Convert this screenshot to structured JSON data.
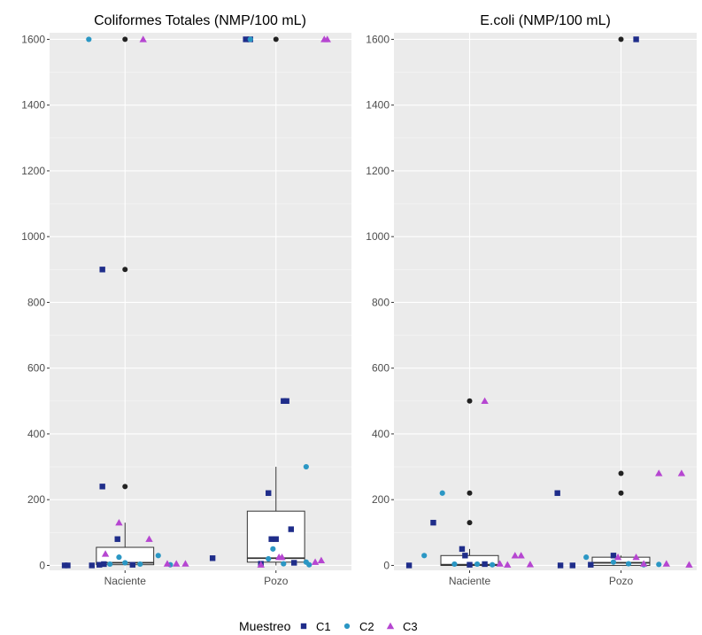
{
  "chart_data": [
    {
      "type": "boxplot",
      "title": "Coliformes Totales (NMP/100 mL)",
      "xlabel": "",
      "ylabel": "",
      "ylim": [
        -15,
        1620
      ],
      "yticks": [
        "0",
        "200",
        "400",
        "600",
        "800",
        "1000",
        "1200",
        "1400",
        "1600"
      ],
      "categories": [
        "Naciente",
        "Pozo"
      ],
      "boxes": [
        {
          "category": "Naciente",
          "q1": 2,
          "median": 8,
          "q3": 55,
          "whisker_low": 0,
          "whisker_high": 130
        },
        {
          "category": "Pozo",
          "q1": 10,
          "median": 22,
          "q3": 165,
          "whisker_low": 0,
          "whisker_high": 300
        }
      ],
      "outliers": [
        {
          "category": "Naciente",
          "values": [
            1600,
            900,
            240
          ]
        },
        {
          "category": "Pozo",
          "values": [
            1600
          ]
        }
      ],
      "series": [
        {
          "name": "C1",
          "color": "#1f2d8a",
          "shape": "square",
          "points": [
            {
              "x": "Naciente",
              "jitter": -0.4,
              "y": 0
            },
            {
              "x": "Naciente",
              "jitter": -0.38,
              "y": 0
            },
            {
              "x": "Naciente",
              "jitter": -0.22,
              "y": 0
            },
            {
              "x": "Naciente",
              "jitter": -0.17,
              "y": 2
            },
            {
              "x": "Naciente",
              "jitter": -0.15,
              "y": 900
            },
            {
              "x": "Naciente",
              "jitter": -0.14,
              "y": 4
            },
            {
              "x": "Naciente",
              "jitter": -0.15,
              "y": 240
            },
            {
              "x": "Naciente",
              "jitter": -0.05,
              "y": 80
            },
            {
              "x": "Naciente",
              "jitter": 0.05,
              "y": 2
            },
            {
              "x": "Pozo",
              "jitter": -0.42,
              "y": 22
            },
            {
              "x": "Pozo",
              "jitter": -0.2,
              "y": 1600
            },
            {
              "x": "Pozo",
              "jitter": -0.17,
              "y": 1600
            },
            {
              "x": "Pozo",
              "jitter": -0.05,
              "y": 220
            },
            {
              "x": "Pozo",
              "jitter": -0.03,
              "y": 80
            },
            {
              "x": "Pozo",
              "jitter": 0.0,
              "y": 80
            },
            {
              "x": "Pozo",
              "jitter": 0.05,
              "y": 500
            },
            {
              "x": "Pozo",
              "jitter": 0.07,
              "y": 500
            },
            {
              "x": "Pozo",
              "jitter": 0.1,
              "y": 110
            },
            {
              "x": "Pozo",
              "jitter": -0.1,
              "y": 5
            },
            {
              "x": "Pozo",
              "jitter": 0.12,
              "y": 8
            }
          ]
        },
        {
          "name": "C2",
          "color": "#2b97c4",
          "shape": "circle",
          "points": [
            {
              "x": "Naciente",
              "jitter": -0.24,
              "y": 1600
            },
            {
              "x": "Naciente",
              "jitter": -0.1,
              "y": 4
            },
            {
              "x": "Naciente",
              "jitter": -0.04,
              "y": 25
            },
            {
              "x": "Naciente",
              "jitter": 0.0,
              "y": 8
            },
            {
              "x": "Naciente",
              "jitter": 0.1,
              "y": 4
            },
            {
              "x": "Naciente",
              "jitter": 0.22,
              "y": 30
            },
            {
              "x": "Naciente",
              "jitter": 0.3,
              "y": 2
            },
            {
              "x": "Pozo",
              "jitter": -0.17,
              "y": 1600
            },
            {
              "x": "Pozo",
              "jitter": -0.05,
              "y": 20
            },
            {
              "x": "Pozo",
              "jitter": -0.02,
              "y": 50
            },
            {
              "x": "Pozo",
              "jitter": 0.05,
              "y": 5
            },
            {
              "x": "Pozo",
              "jitter": 0.2,
              "y": 10
            },
            {
              "x": "Pozo",
              "jitter": 0.2,
              "y": 300
            },
            {
              "x": "Pozo",
              "jitter": 0.22,
              "y": 2
            }
          ]
        },
        {
          "name": "C3",
          "color": "#b646d1",
          "shape": "triangle",
          "points": [
            {
              "x": "Naciente",
              "jitter": 0.12,
              "y": 1600
            },
            {
              "x": "Naciente",
              "jitter": -0.13,
              "y": 35
            },
            {
              "x": "Naciente",
              "jitter": -0.04,
              "y": 130
            },
            {
              "x": "Naciente",
              "jitter": 0.16,
              "y": 80
            },
            {
              "x": "Naciente",
              "jitter": 0.28,
              "y": 5
            },
            {
              "x": "Naciente",
              "jitter": 0.34,
              "y": 5
            },
            {
              "x": "Naciente",
              "jitter": 0.4,
              "y": 5
            },
            {
              "x": "Pozo",
              "jitter": -0.1,
              "y": 2
            },
            {
              "x": "Pozo",
              "jitter": 0.02,
              "y": 25
            },
            {
              "x": "Pozo",
              "jitter": 0.04,
              "y": 25
            },
            {
              "x": "Pozo",
              "jitter": 0.26,
              "y": 10
            },
            {
              "x": "Pozo",
              "jitter": 0.3,
              "y": 15
            },
            {
              "x": "Pozo",
              "jitter": 0.32,
              "y": 1600
            },
            {
              "x": "Pozo",
              "jitter": 0.34,
              "y": 1600
            }
          ]
        }
      ]
    },
    {
      "type": "boxplot",
      "title": "E.coli (NMP/100 mL)",
      "xlabel": "",
      "ylabel": "",
      "ylim": [
        -15,
        1620
      ],
      "yticks": [
        "0",
        "200",
        "400",
        "600",
        "800",
        "1000",
        "1200",
        "1400",
        "1600"
      ],
      "categories": [
        "Naciente",
        "Pozo"
      ],
      "boxes": [
        {
          "category": "Naciente",
          "q1": 0,
          "median": 2,
          "q3": 30,
          "whisker_low": 0,
          "whisker_high": 50
        },
        {
          "category": "Pozo",
          "q1": 0,
          "median": 8,
          "q3": 25,
          "whisker_low": 0,
          "whisker_high": 30
        }
      ],
      "outliers": [
        {
          "category": "Naciente",
          "values": [
            500,
            220,
            130
          ]
        },
        {
          "category": "Pozo",
          "values": [
            1600,
            280,
            220
          ]
        }
      ],
      "series": [
        {
          "name": "C1",
          "color": "#1f2d8a",
          "shape": "square",
          "points": [
            {
              "x": "Naciente",
              "jitter": -0.4,
              "y": 0
            },
            {
              "x": "Naciente",
              "jitter": -0.24,
              "y": 130
            },
            {
              "x": "Naciente",
              "jitter": -0.05,
              "y": 50
            },
            {
              "x": "Naciente",
              "jitter": -0.03,
              "y": 30
            },
            {
              "x": "Naciente",
              "jitter": 0.0,
              "y": 2
            },
            {
              "x": "Naciente",
              "jitter": 0.1,
              "y": 4
            },
            {
              "x": "Pozo",
              "jitter": -0.42,
              "y": 220
            },
            {
              "x": "Pozo",
              "jitter": -0.4,
              "y": 0
            },
            {
              "x": "Pozo",
              "jitter": -0.32,
              "y": 0
            },
            {
              "x": "Pozo",
              "jitter": -0.2,
              "y": 2
            },
            {
              "x": "Pozo",
              "jitter": -0.05,
              "y": 30
            },
            {
              "x": "Pozo",
              "jitter": 0.1,
              "y": 1600
            }
          ]
        },
        {
          "name": "C2",
          "color": "#2b97c4",
          "shape": "circle",
          "points": [
            {
              "x": "Naciente",
              "jitter": -0.3,
              "y": 30
            },
            {
              "x": "Naciente",
              "jitter": -0.18,
              "y": 220
            },
            {
              "x": "Naciente",
              "jitter": -0.1,
              "y": 4
            },
            {
              "x": "Naciente",
              "jitter": 0.05,
              "y": 4
            },
            {
              "x": "Naciente",
              "jitter": 0.15,
              "y": 2
            },
            {
              "x": "Pozo",
              "jitter": -0.23,
              "y": 25
            },
            {
              "x": "Pozo",
              "jitter": -0.05,
              "y": 10
            },
            {
              "x": "Pozo",
              "jitter": 0.05,
              "y": 5
            },
            {
              "x": "Pozo",
              "jitter": 0.15,
              "y": 2
            },
            {
              "x": "Pozo",
              "jitter": 0.25,
              "y": 3
            }
          ]
        },
        {
          "name": "C3",
          "color": "#b646d1",
          "shape": "triangle",
          "points": [
            {
              "x": "Naciente",
              "jitter": 0.1,
              "y": 500
            },
            {
              "x": "Naciente",
              "jitter": 0.2,
              "y": 5
            },
            {
              "x": "Naciente",
              "jitter": 0.25,
              "y": 2
            },
            {
              "x": "Naciente",
              "jitter": 0.3,
              "y": 30
            },
            {
              "x": "Naciente",
              "jitter": 0.34,
              "y": 30
            },
            {
              "x": "Naciente",
              "jitter": 0.4,
              "y": 3
            },
            {
              "x": "Pozo",
              "jitter": -0.02,
              "y": 25
            },
            {
              "x": "Pozo",
              "jitter": 0.1,
              "y": 25
            },
            {
              "x": "Pozo",
              "jitter": 0.15,
              "y": 5
            },
            {
              "x": "Pozo",
              "jitter": 0.25,
              "y": 280
            },
            {
              "x": "Pozo",
              "jitter": 0.3,
              "y": 5
            },
            {
              "x": "Pozo",
              "jitter": 0.4,
              "y": 280
            },
            {
              "x": "Pozo",
              "jitter": 0.45,
              "y": 2
            }
          ]
        }
      ]
    }
  ],
  "legend": {
    "title": "Muestreo",
    "position": "bottom",
    "items": [
      {
        "label": "C1",
        "color": "#1f2d8a",
        "shape": "square"
      },
      {
        "label": "C2",
        "color": "#2b97c4",
        "shape": "circle"
      },
      {
        "label": "C3",
        "color": "#b646d1",
        "shape": "triangle"
      }
    ]
  },
  "outlier_color": "#222222",
  "box_color": "#333333",
  "panel_background": "#ebebeb"
}
